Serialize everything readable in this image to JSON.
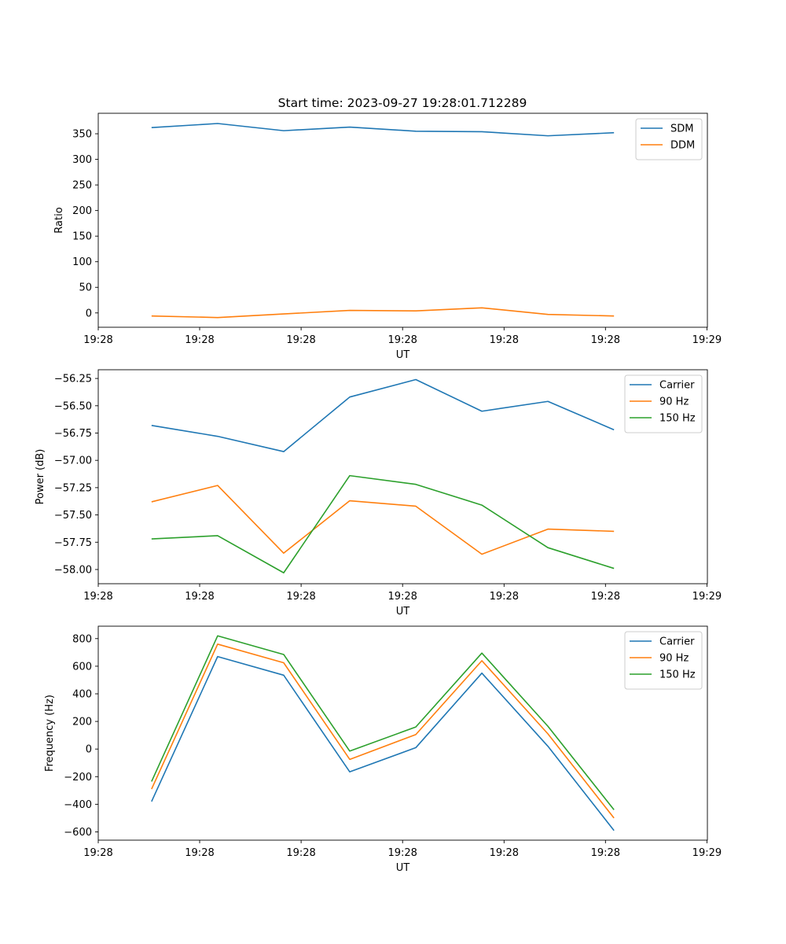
{
  "figure_title": "Start time: 2023-09-27 19:28:01.712289",
  "colors": {
    "blue": "#1f77b4",
    "orange": "#ff7f0e",
    "green": "#2ca02c"
  },
  "chart_data": [
    {
      "type": "line",
      "title": "Start time: 2023-09-27 19:28:01.712289",
      "xlabel": "UT",
      "ylabel": "Ratio",
      "x": [
        1,
        2,
        3,
        4,
        5,
        6,
        7,
        8
      ],
      "xlim": [
        0.193,
        9.414
      ],
      "x_ticks": [
        0.193,
        1.728,
        3.264,
        4.8,
        6.336,
        7.871,
        9.407
      ],
      "x_tick_labels": [
        "19:28",
        "19:28",
        "19:28",
        "19:28",
        "19:28",
        "19:28",
        "19:29"
      ],
      "ylim": [
        -28,
        390
      ],
      "y_ticks": [
        0,
        50,
        100,
        150,
        200,
        250,
        300,
        350
      ],
      "y_tick_labels": [
        "0",
        "50",
        "100",
        "150",
        "200",
        "250",
        "300",
        "350"
      ],
      "legend": "top-right",
      "series": [
        {
          "name": "SDM",
          "color": "#1f77b4",
          "values": [
            362,
            370,
            356,
            363,
            355,
            354,
            346,
            352
          ]
        },
        {
          "name": "DDM",
          "color": "#ff7f0e",
          "values": [
            -6,
            -9,
            -2,
            5,
            4,
            10,
            -3,
            -6
          ]
        }
      ]
    },
    {
      "type": "line",
      "title": "",
      "xlabel": "UT",
      "ylabel": "Power (dB)",
      "x": [
        1,
        2,
        3,
        4,
        5,
        6,
        7,
        8
      ],
      "xlim": [
        0.193,
        9.414
      ],
      "x_ticks": [
        0.193,
        1.728,
        3.264,
        4.8,
        6.336,
        7.871,
        9.407
      ],
      "x_tick_labels": [
        "19:28",
        "19:28",
        "19:28",
        "19:28",
        "19:28",
        "19:28",
        "19:29"
      ],
      "ylim": [
        -58.13,
        -56.17
      ],
      "y_ticks": [
        -58.0,
        -57.75,
        -57.5,
        -57.25,
        -57.0,
        -56.75,
        -56.5,
        -56.25
      ],
      "y_tick_labels": [
        "−58.00",
        "−57.75",
        "−57.50",
        "−57.25",
        "−57.00",
        "−56.75",
        "−56.50",
        "−56.25"
      ],
      "legend": "top-right",
      "series": [
        {
          "name": "Carrier",
          "color": "#1f77b4",
          "values": [
            -56.68,
            -56.78,
            -56.92,
            -56.42,
            -56.26,
            -56.55,
            -56.46,
            -56.72
          ]
        },
        {
          "name": "90 Hz",
          "color": "#ff7f0e",
          "values": [
            -57.38,
            -57.23,
            -57.85,
            -57.37,
            -57.42,
            -57.86,
            -57.63,
            -57.65
          ]
        },
        {
          "name": "150 Hz",
          "color": "#2ca02c",
          "values": [
            -57.72,
            -57.69,
            -58.03,
            -57.14,
            -57.22,
            -57.41,
            -57.8,
            -57.99
          ]
        }
      ]
    },
    {
      "type": "line",
      "title": "",
      "xlabel": "UT",
      "ylabel": "Frequency (Hz)",
      "x": [
        1,
        2,
        3,
        4,
        5,
        6,
        7,
        8
      ],
      "xlim": [
        0.193,
        9.414
      ],
      "x_ticks": [
        0.193,
        1.728,
        3.264,
        4.8,
        6.336,
        7.871,
        9.407
      ],
      "x_tick_labels": [
        "19:28",
        "19:28",
        "19:28",
        "19:28",
        "19:28",
        "19:28",
        "19:29"
      ],
      "ylim": [
        -660,
        890
      ],
      "y_ticks": [
        -600,
        -400,
        -200,
        0,
        200,
        400,
        600,
        800
      ],
      "y_tick_labels": [
        "−600",
        "−400",
        "−200",
        "0",
        "200",
        "400",
        "600",
        "800"
      ],
      "legend": "top-right",
      "series": [
        {
          "name": "Carrier",
          "color": "#1f77b4",
          "values": [
            -380,
            670,
            535,
            -165,
            10,
            550,
            20,
            -590
          ]
        },
        {
          "name": "90 Hz",
          "color": "#ff7f0e",
          "values": [
            -290,
            760,
            625,
            -75,
            105,
            640,
            110,
            -500
          ]
        },
        {
          "name": "150 Hz",
          "color": "#2ca02c",
          "values": [
            -235,
            820,
            685,
            -15,
            160,
            695,
            165,
            -440
          ]
        }
      ]
    }
  ]
}
